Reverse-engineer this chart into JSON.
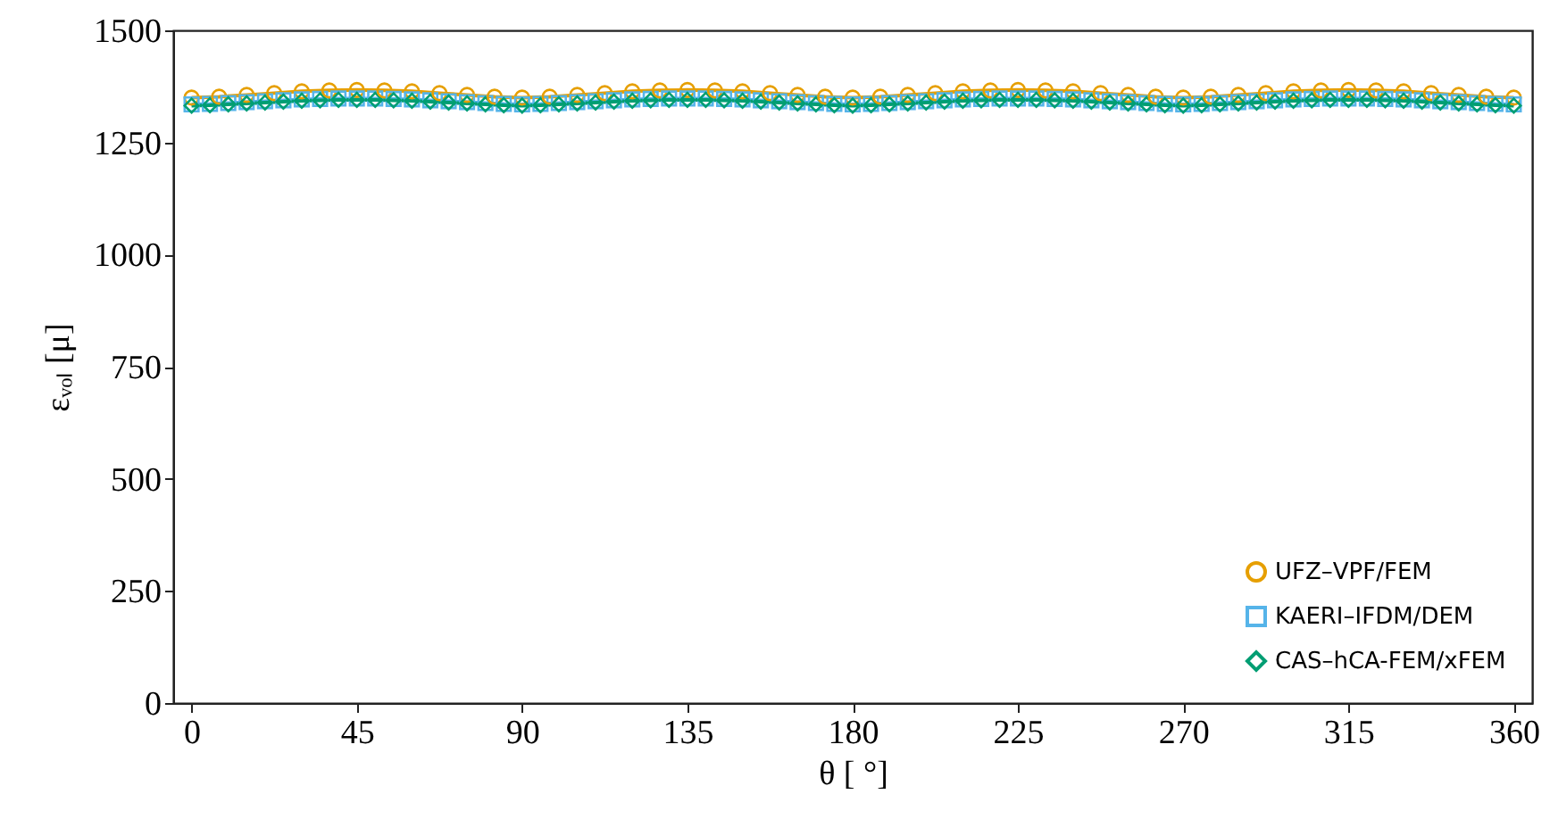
{
  "chart_data": {
    "type": "line",
    "xlabel": "θ [ °]",
    "ylabel": "εᵥₒₗ [μ]",
    "xlim": [
      -5,
      365
    ],
    "ylim": [
      0,
      1500
    ],
    "xticks": [
      0,
      45,
      90,
      135,
      180,
      225,
      270,
      315,
      360
    ],
    "yticks": [
      0,
      250,
      500,
      750,
      1000,
      1250,
      1500
    ],
    "grid": false,
    "legend": "bottom right",
    "series": [
      {
        "name": "UFZ–VPF/FEM",
        "color": "#e69f00",
        "marker": "circle",
        "x": [
          0,
          7.5,
          15,
          22.5,
          30,
          37.5,
          45,
          52.5,
          60,
          67.5,
          75,
          82.5,
          90,
          97.5,
          105,
          112.5,
          120,
          127.5,
          135,
          142.5,
          150,
          157.5,
          165,
          172.5,
          180,
          187.5,
          195,
          202.5,
          210,
          217.5,
          225,
          232.5,
          240,
          247.5,
          255,
          262.5,
          270,
          277.5,
          285,
          292.5,
          300,
          307.5,
          315,
          322.5,
          330,
          337.5,
          345,
          352.5,
          360
        ],
        "values": [
          1350,
          1352,
          1356,
          1360,
          1364,
          1366,
          1367,
          1366,
          1364,
          1360,
          1356,
          1352,
          1350,
          1352,
          1356,
          1360,
          1364,
          1366,
          1367,
          1366,
          1364,
          1360,
          1356,
          1352,
          1350,
          1352,
          1356,
          1360,
          1364,
          1366,
          1367,
          1366,
          1364,
          1360,
          1356,
          1352,
          1350,
          1352,
          1356,
          1360,
          1364,
          1366,
          1367,
          1366,
          1364,
          1360,
          1356,
          1352,
          1350
        ]
      },
      {
        "name": "KAERI–IFDM/DEM",
        "color": "#56b4e9",
        "marker": "square",
        "x": [
          0,
          5,
          10,
          15,
          20,
          25,
          30,
          35,
          40,
          45,
          50,
          55,
          60,
          65,
          70,
          75,
          80,
          85,
          90,
          95,
          100,
          105,
          110,
          115,
          120,
          125,
          130,
          135,
          140,
          145,
          150,
          155,
          160,
          165,
          170,
          175,
          180,
          185,
          190,
          195,
          200,
          205,
          210,
          215,
          220,
          225,
          230,
          235,
          240,
          245,
          250,
          255,
          260,
          265,
          270,
          275,
          280,
          285,
          290,
          295,
          300,
          305,
          310,
          315,
          320,
          325,
          330,
          335,
          340,
          345,
          350,
          355,
          360
        ],
        "values": [
          1335,
          1336,
          1338,
          1340,
          1342,
          1344,
          1346,
          1347,
          1348,
          1348,
          1348,
          1347,
          1346,
          1344,
          1342,
          1340,
          1338,
          1336,
          1335,
          1336,
          1338,
          1340,
          1342,
          1344,
          1346,
          1347,
          1348,
          1348,
          1348,
          1347,
          1346,
          1344,
          1342,
          1340,
          1338,
          1336,
          1335,
          1336,
          1338,
          1340,
          1342,
          1344,
          1346,
          1347,
          1348,
          1348,
          1348,
          1347,
          1346,
          1344,
          1342,
          1340,
          1338,
          1336,
          1335,
          1336,
          1338,
          1340,
          1342,
          1344,
          1346,
          1347,
          1348,
          1348,
          1348,
          1347,
          1346,
          1344,
          1342,
          1340,
          1338,
          1336,
          1335
        ]
      },
      {
        "name": "CAS–hCA-FEM/xFEM",
        "color": "#009e73",
        "marker": "diamond",
        "x": [
          0,
          5,
          10,
          15,
          20,
          25,
          30,
          35,
          40,
          45,
          50,
          55,
          60,
          65,
          70,
          75,
          80,
          85,
          90,
          95,
          100,
          105,
          110,
          115,
          120,
          125,
          130,
          135,
          140,
          145,
          150,
          155,
          160,
          165,
          170,
          175,
          180,
          185,
          190,
          195,
          200,
          205,
          210,
          215,
          220,
          225,
          230,
          235,
          240,
          245,
          250,
          255,
          260,
          265,
          270,
          275,
          280,
          285,
          290,
          295,
          300,
          305,
          310,
          315,
          320,
          325,
          330,
          335,
          340,
          345,
          350,
          355,
          360
        ],
        "values": [
          1332,
          1333,
          1335,
          1337,
          1339,
          1341,
          1343,
          1344,
          1345,
          1345,
          1345,
          1344,
          1343,
          1341,
          1339,
          1337,
          1335,
          1333,
          1332,
          1333,
          1335,
          1337,
          1339,
          1341,
          1343,
          1344,
          1345,
          1345,
          1345,
          1344,
          1343,
          1341,
          1339,
          1337,
          1335,
          1333,
          1332,
          1333,
          1335,
          1337,
          1339,
          1341,
          1343,
          1344,
          1345,
          1345,
          1345,
          1344,
          1343,
          1341,
          1339,
          1337,
          1335,
          1333,
          1332,
          1333,
          1335,
          1337,
          1339,
          1341,
          1343,
          1344,
          1345,
          1345,
          1345,
          1344,
          1343,
          1341,
          1339,
          1337,
          1335,
          1333,
          1332
        ]
      }
    ]
  }
}
